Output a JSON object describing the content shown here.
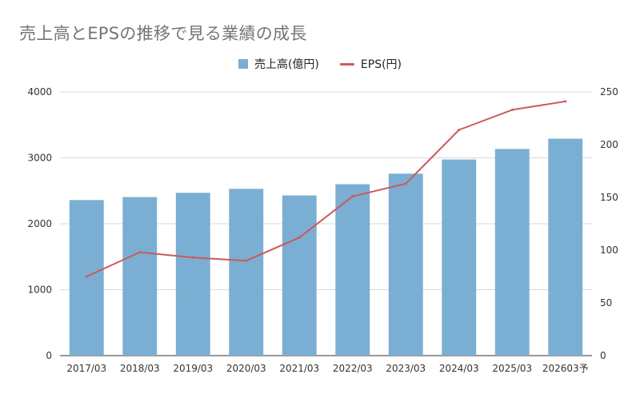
{
  "chart_data": {
    "type": "bar",
    "title": "売上高とEPSの推移で見る業績の成長",
    "categories": [
      "2017/03",
      "2018/03",
      "2019/03",
      "2020/03",
      "2021/03",
      "2022/03",
      "2023/03",
      "2024/03",
      "2025/03",
      "202603予"
    ],
    "series": [
      {
        "name": "売上高(億円)",
        "type": "bar",
        "axis": "left",
        "color": "#7BAED3",
        "values": [
          2360,
          2405,
          2470,
          2530,
          2430,
          2600,
          2760,
          2975,
          3135,
          3290
        ]
      },
      {
        "name": "EPS(円)",
        "type": "line",
        "axis": "right",
        "color": "#CB5A56",
        "values": [
          75,
          98,
          93,
          90,
          112,
          151,
          163,
          214,
          233,
          241
        ]
      }
    ],
    "y_left": {
      "ylim": [
        0,
        4000
      ],
      "ticks": [
        "0",
        "1000",
        "2000",
        "3000",
        "4000"
      ]
    },
    "y_right": {
      "ylim": [
        0,
        250
      ],
      "ticks": [
        "0",
        "50",
        "100",
        "150",
        "200",
        "250"
      ]
    },
    "grid": true,
    "legend_position": "top"
  }
}
